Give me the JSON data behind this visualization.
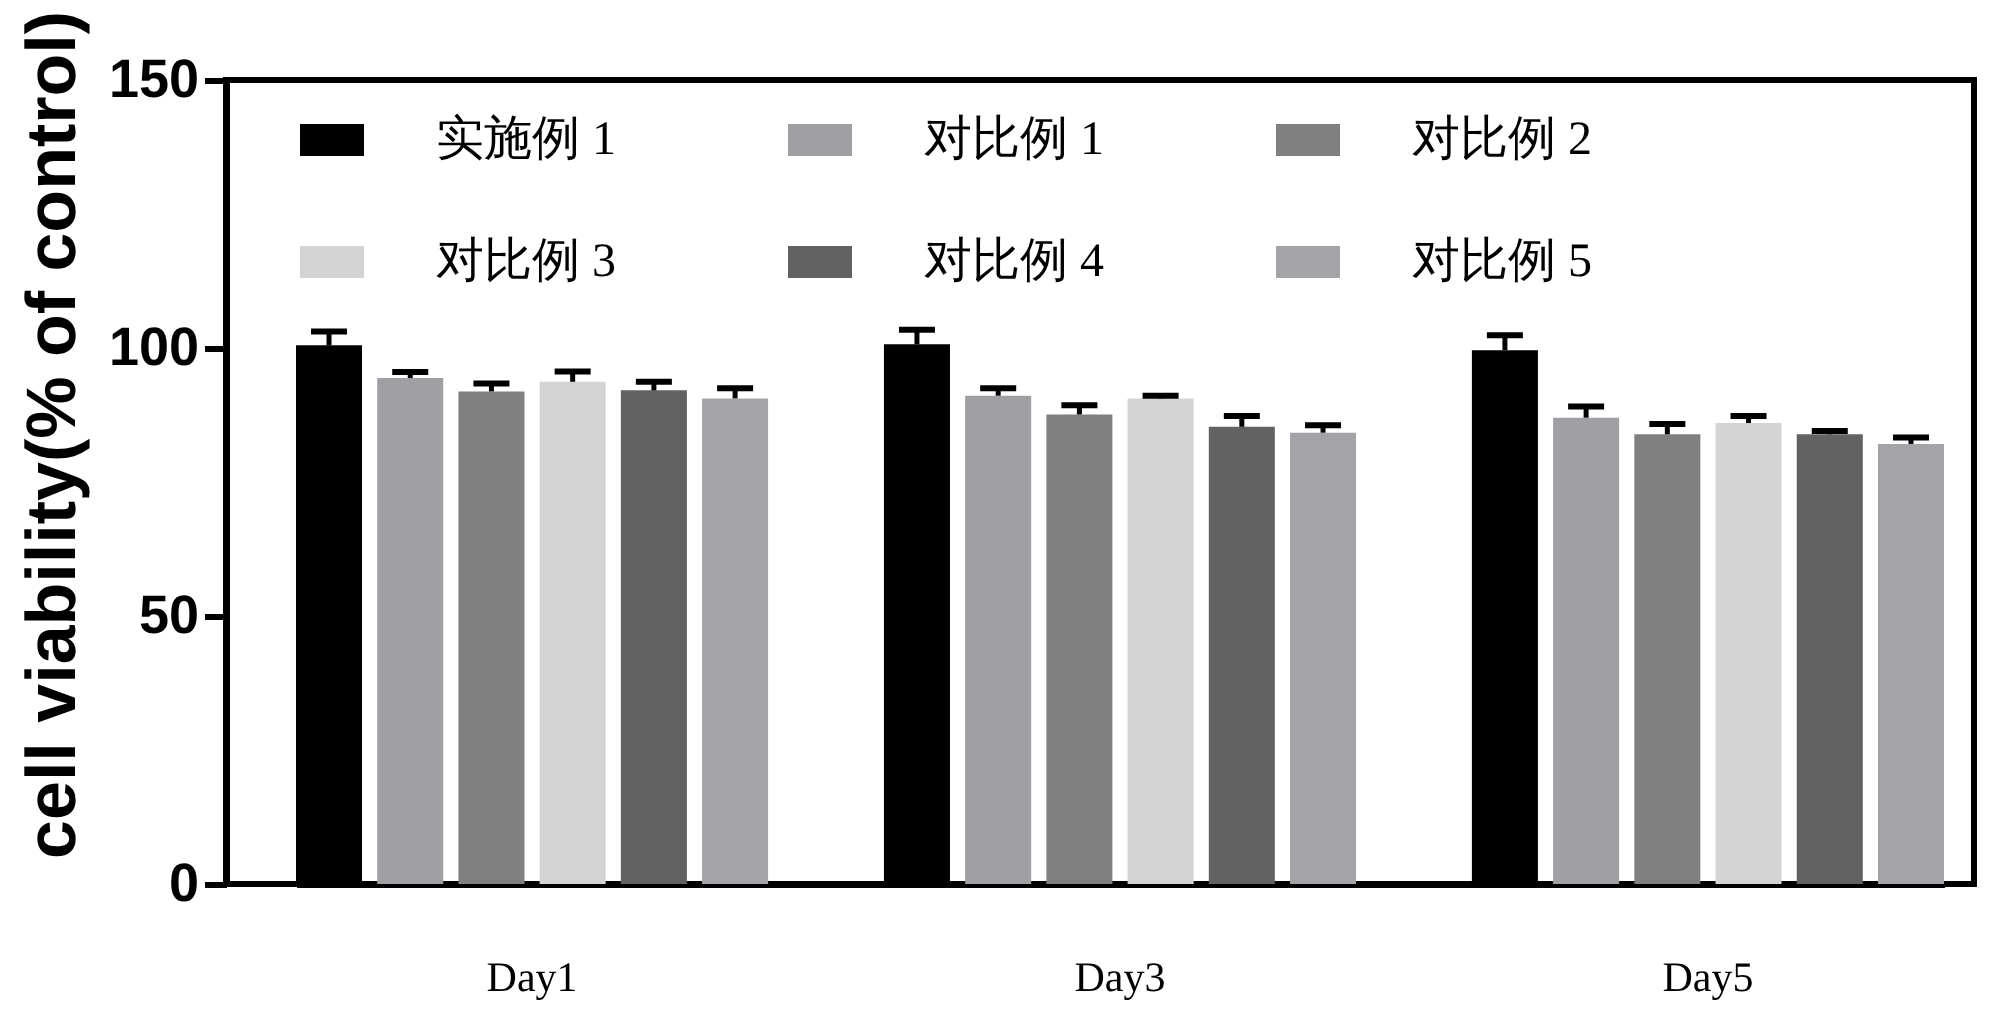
{
  "chart_data": {
    "type": "bar",
    "ylabel": "cell viability(% of control)",
    "categories": [
      "Day1",
      "Day3",
      "Day5"
    ],
    "ylim": [
      0,
      150
    ],
    "yticks": [
      0,
      50,
      100,
      150
    ],
    "legend": "top left",
    "series": [
      {
        "name": "实施例 1",
        "color": "#000000",
        "values": [
          100.5,
          100.7,
          99.6
        ],
        "errors": [
          2.6,
          2.7,
          2.8
        ]
      },
      {
        "name": "对比例 1",
        "color": "#a0a0a4",
        "values": [
          94.4,
          91.1,
          87.0
        ],
        "errors": [
          1.1,
          1.4,
          2.1
        ]
      },
      {
        "name": "对比例 2",
        "color": "#808080",
        "values": [
          91.9,
          87.6,
          83.9
        ],
        "errors": [
          1.5,
          1.7,
          1.9
        ]
      },
      {
        "name": "对比例 3",
        "color": "#d4d4d4",
        "values": [
          93.7,
          90.6,
          86.0
        ],
        "errors": [
          1.9,
          0.5,
          1.3
        ]
      },
      {
        "name": "对比例 4",
        "color": "#626262",
        "values": [
          92.1,
          85.3,
          83.9
        ],
        "errors": [
          1.6,
          2.0,
          0.6
        ]
      },
      {
        "name": "对比例 5",
        "color": "#a4a4a8",
        "values": [
          90.6,
          84.2,
          82.1
        ],
        "errors": [
          1.9,
          1.4,
          1.2
        ]
      }
    ]
  }
}
